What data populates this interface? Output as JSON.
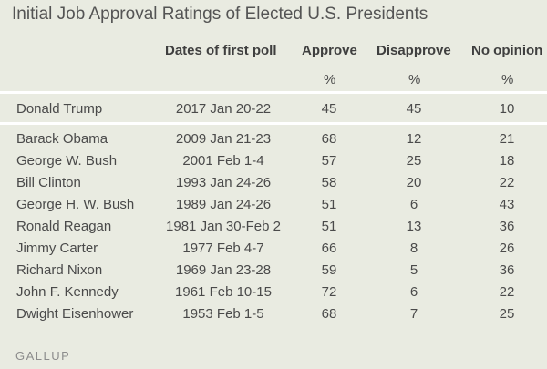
{
  "title": "Initial Job Approval Ratings of Elected U.S. Presidents",
  "columns": {
    "dates": "Dates of first poll",
    "approve": "Approve",
    "disapprove": "Disapprove",
    "no_opinion": "No opinion",
    "unit": "%"
  },
  "rows": [
    {
      "name": "Donald Trump",
      "date": "2017 Jan 20-22",
      "approve": "45",
      "disapprove": "45",
      "no_opinion": "10"
    },
    {
      "name": "Barack Obama",
      "date": "2009 Jan 21-23",
      "approve": "68",
      "disapprove": "12",
      "no_opinion": "21"
    },
    {
      "name": "George W. Bush",
      "date": "2001 Feb 1-4",
      "approve": "57",
      "disapprove": "25",
      "no_opinion": "18"
    },
    {
      "name": "Bill Clinton",
      "date": "1993 Jan 24-26",
      "approve": "58",
      "disapprove": "20",
      "no_opinion": "22"
    },
    {
      "name": "George H. W. Bush",
      "date": "1989 Jan 24-26",
      "approve": "51",
      "disapprove": "6",
      "no_opinion": "43"
    },
    {
      "name": "Ronald Reagan",
      "date": "1981 Jan 30-Feb 2",
      "approve": "51",
      "disapprove": "13",
      "no_opinion": "36"
    },
    {
      "name": "Jimmy Carter",
      "date": "1977 Feb 4-7",
      "approve": "66",
      "disapprove": "8",
      "no_opinion": "26"
    },
    {
      "name": "Richard Nixon",
      "date": "1969 Jan 23-28",
      "approve": "59",
      "disapprove": "5",
      "no_opinion": "36"
    },
    {
      "name": "John F. Kennedy",
      "date": "1961 Feb 10-15",
      "approve": "72",
      "disapprove": "6",
      "no_opinion": "22"
    },
    {
      "name": "Dwight Eisenhower",
      "date": "1953 Feb 1-5",
      "approve": "68",
      "disapprove": "7",
      "no_opinion": "25"
    }
  ],
  "footer": "GALLUP"
}
